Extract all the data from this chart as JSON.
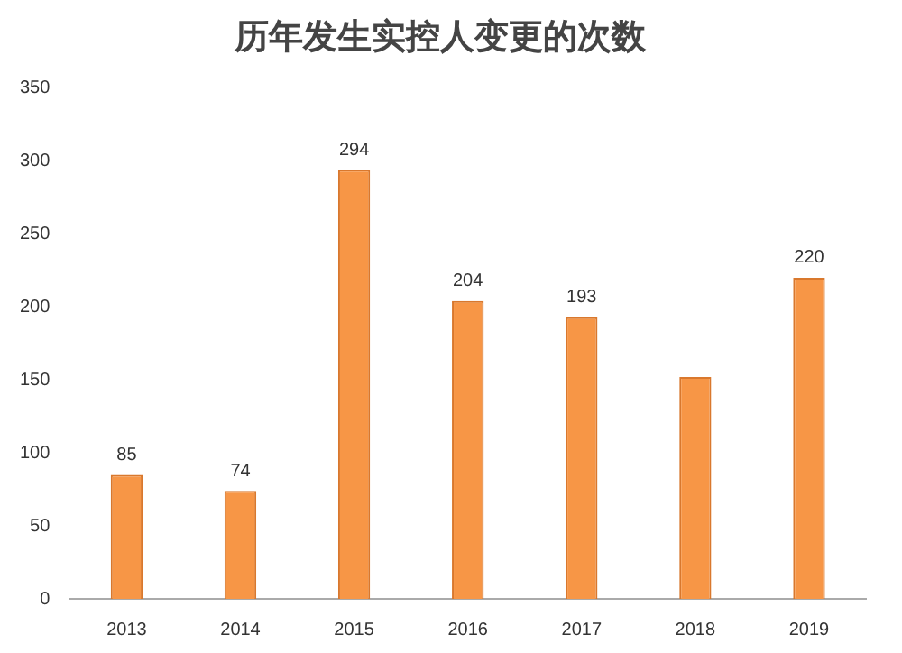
{
  "chart_data": {
    "type": "bar",
    "title": "历年发生实控人变更的次数",
    "categories": [
      "2013",
      "2014",
      "2015",
      "2016",
      "2017",
      "2018",
      "2019"
    ],
    "values": [
      85,
      74,
      294,
      204,
      193,
      152,
      220
    ],
    "value_labels": [
      "85",
      "74",
      "294",
      "204",
      "193",
      null,
      "220"
    ],
    "color": "#f79646",
    "ylim": [
      0,
      350
    ],
    "yticks": [
      0,
      50,
      100,
      150,
      200,
      250,
      300,
      350
    ],
    "grid": false,
    "legend": false
  }
}
